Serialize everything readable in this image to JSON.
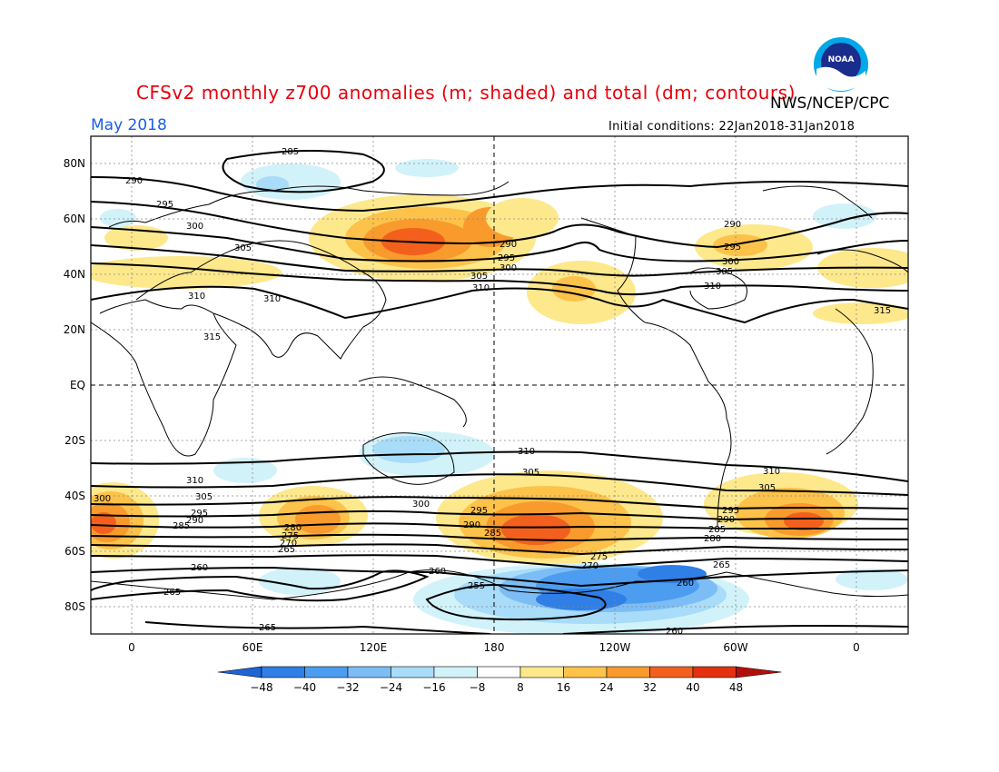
{
  "title": "CFSv2 monthly z700 anomalies (m; shaded) and total (dm; contours)",
  "agency": "NWS/NCEP/CPC",
  "logo_text": "NOAA",
  "valid_month": "May 2018",
  "initial_conditions": "Initial conditions: 22Jan2018-31Jan2018",
  "lat_labels": [
    "80N",
    "60N",
    "40N",
    "20N",
    "EQ",
    "20S",
    "40S",
    "60S",
    "80S"
  ],
  "lon_labels": [
    "0",
    "60E",
    "120E",
    "180",
    "120W",
    "60W",
    "0"
  ],
  "colorbar": {
    "tick_labels": [
      "-48",
      "-40",
      "-32",
      "-24",
      "-16",
      "-8",
      "8",
      "16",
      "24",
      "32",
      "40",
      "48"
    ],
    "colors": [
      "#1e64d2",
      "#2f7fe6",
      "#4c9cf0",
      "#7cbdf5",
      "#a8dcf8",
      "#d2f2fa",
      "#ffffff",
      "#fde88c",
      "#fcc24a",
      "#f99a2d",
      "#f3601e",
      "#e4300f",
      "#b30f0a"
    ]
  },
  "contour_labels": [
    "285",
    "290",
    "295",
    "300",
    "305",
    "310",
    "315",
    "260",
    "265",
    "270",
    "275",
    "280",
    "255"
  ]
}
